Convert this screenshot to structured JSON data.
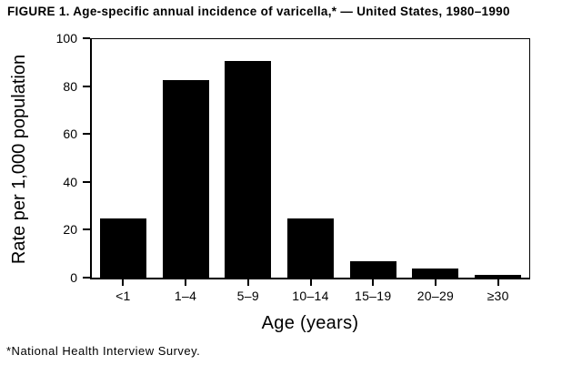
{
  "figure": {
    "title": "FIGURE 1. Age-specific annual incidence of varicella,* — United States, 1980–1990",
    "footnote": "*National Health Interview Survey."
  },
  "chart_data": {
    "type": "bar",
    "categories": [
      "<1",
      "1–4",
      "5–9",
      "10–14",
      "15–19",
      "20–29",
      "≥30"
    ],
    "values": [
      25,
      83,
      91,
      25,
      7,
      4,
      1
    ],
    "title": "FIGURE 1. Age-specific annual incidence of varicella,* — United States, 1980–1990",
    "xlabel": "Age (years)",
    "ylabel": "Rate per 1,000 population",
    "ylim": [
      0,
      100
    ],
    "yticks": [
      0,
      20,
      40,
      60,
      80,
      100
    ],
    "bar_color": "#000000",
    "background_color": "#ffffff",
    "grid": false,
    "legend_position": "none"
  }
}
